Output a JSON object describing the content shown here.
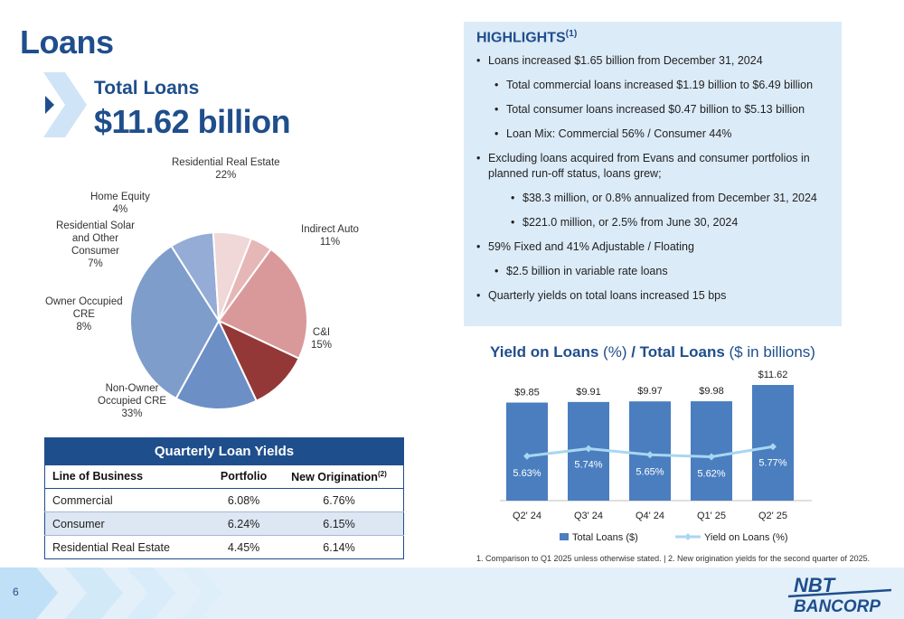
{
  "title": "Loans",
  "total": {
    "label": "Total Loans",
    "value": "$11.62 billion"
  },
  "pie": {
    "slices": [
      {
        "name": "Residential Real Estate",
        "pct": 22,
        "color": "#d9999a"
      },
      {
        "name": "Indirect Auto",
        "pct": 11,
        "color": "#943837"
      },
      {
        "name": "C&I",
        "pct": 15,
        "color": "#6c8fc6"
      },
      {
        "name": "Non-Owner Occupied CRE",
        "pct": 33,
        "color": "#7f9dcb"
      },
      {
        "name": "Owner Occupied CRE",
        "pct": 8,
        "color": "#94acd6"
      },
      {
        "name": "Residential Solar and Other Consumer",
        "pct": 7,
        "color": "#f0d7d8"
      },
      {
        "name": "Home Equity",
        "pct": 4,
        "color": "#e6b7b7"
      }
    ],
    "labels": {
      "rre_l1": "Residential Real Estate",
      "rre_pct": "22%",
      "ia_l1": "Indirect Auto",
      "ia_pct": "11%",
      "ci_l1": "C&I",
      "ci_pct": "15%",
      "noo_l1": "Non-Owner",
      "noo_l2": "Occupied CRE",
      "noo_pct": "33%",
      "oo_l1": "Owner Occupied",
      "oo_l2": "CRE",
      "oo_pct": "8%",
      "rs_l1": "Residential Solar",
      "rs_l2": "and Other",
      "rs_l3": "Consumer",
      "rs_pct": "7%",
      "he_l1": "Home Equity",
      "he_pct": "4%"
    }
  },
  "yields_table": {
    "title": "Quarterly Loan Yields",
    "headers": {
      "lob": "Line of Business",
      "portfolio": "Portfolio",
      "new_orig": "New Origination",
      "new_orig_sup": "(2)"
    },
    "rows": [
      {
        "lob": "Commercial",
        "portfolio": "6.08%",
        "new_orig": "6.76%"
      },
      {
        "lob": "Consumer",
        "portfolio": "6.24%",
        "new_orig": "6.15%"
      },
      {
        "lob": "Residential Real Estate",
        "portfolio": "4.45%",
        "new_orig": "6.14%"
      }
    ]
  },
  "highlights": {
    "title": "HIGHLIGHTS",
    "title_sup": "(1)",
    "items": [
      "Loans increased $1.65 billion from December 31, 2024",
      "Total commercial loans increased $1.19 billion to $6.49 billion",
      "Total consumer loans increased $0.47 billion to $5.13 billion",
      "Loan Mix: Commercial 56% / Consumer 44%",
      "Excluding loans acquired from Evans and consumer portfolios in planned run-off status, loans grew;",
      "$38.3 million, or 0.8% annualized from December 31, 2024",
      "$221.0 million, or 2.5% from June 30, 2024",
      "59% Fixed and 41% Adjustable / Floating",
      "$2.5 billion in variable rate loans",
      "Quarterly yields on total loans increased 15 bps"
    ]
  },
  "chart_title": {
    "part1": "Yield on Loans",
    "part2": " (%) ",
    "part3": "/ Total Loans",
    "part4": " ($ in billions)"
  },
  "chart_data": {
    "type": "bar",
    "categories": [
      "Q2' 24",
      "Q3' 24",
      "Q4' 24",
      "Q1' 25",
      "Q2' 25"
    ],
    "series": [
      {
        "name": "Total Loans ($)",
        "type": "bar",
        "values": [
          9.85,
          9.91,
          9.97,
          9.98,
          11.62
        ],
        "labels": [
          "$9.85",
          "$9.91",
          "$9.97",
          "$9.98",
          "$11.62"
        ],
        "color": "#4a7ebf"
      },
      {
        "name": "Yield on Loans (%)",
        "type": "line",
        "values": [
          5.63,
          5.74,
          5.65,
          5.62,
          5.77
        ],
        "labels": [
          "5.63%",
          "5.74%",
          "5.65%",
          "5.62%",
          "5.77%"
        ],
        "color": "#a9d6f2"
      }
    ],
    "legend": "bottom"
  },
  "footnote": "1. Comparison to Q1 2025 unless otherwise stated.    |    2. New origination yields for the second quarter of 2025.",
  "page_number": "6",
  "logo": {
    "line1": "NBT",
    "line2": "BANCORP"
  }
}
